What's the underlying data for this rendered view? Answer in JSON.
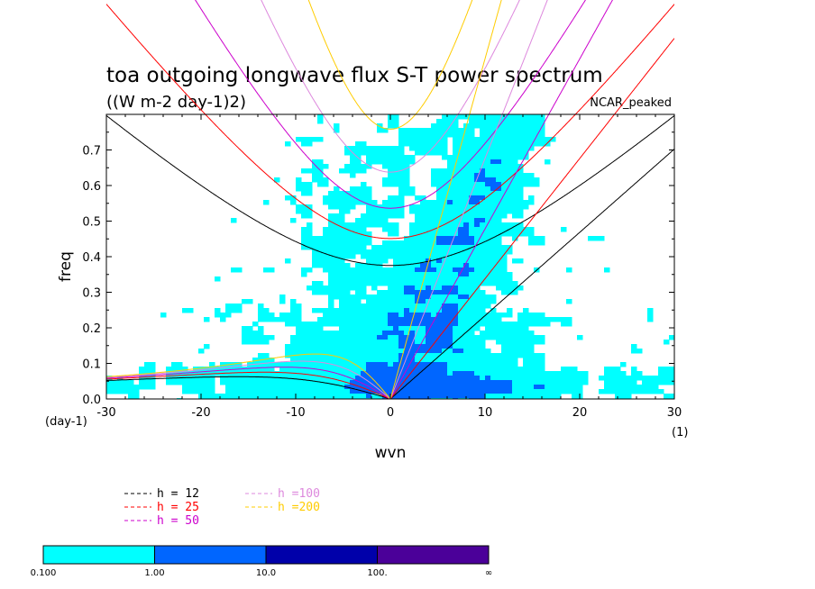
{
  "chart_data": {
    "type": "heatmap",
    "title": "toa outgoing longwave flux S-T power spectrum",
    "subtitle": "((W m-2 day-1)2)",
    "tag": "NCAR_peaked",
    "xlabel": "wvn",
    "ylabel": "freq",
    "x_unit": "(1)",
    "y_unit": "(day-1)",
    "xlim": [
      -30,
      30
    ],
    "ylim": [
      0,
      0.8
    ],
    "x_ticks": [
      -30,
      -20,
      -10,
      0,
      10,
      20,
      30
    ],
    "y_ticks": [
      0.0,
      0.1,
      0.2,
      0.3,
      0.4,
      0.5,
      0.6,
      0.7
    ],
    "x_tick_labels": [
      "-30",
      "-20",
      "-10",
      "0",
      "10",
      "20",
      "30"
    ],
    "y_tick_labels": [
      "0.0",
      "0.1",
      "0.2",
      "0.3",
      "0.4",
      "0.5",
      "0.6",
      "0.7"
    ],
    "contour_levels": [
      0.1,
      1.0,
      10.0,
      100.0
    ],
    "colorbar_labels": [
      "0.100",
      "1.00",
      "10.0",
      "100.",
      "∞"
    ],
    "colorbar_colors": [
      "#00ffff",
      "#0066ff",
      "#0000aa",
      "#4b0099"
    ],
    "dispersion_curves": [
      {
        "label": "h = 12",
        "h": 12,
        "color": "#000000"
      },
      {
        "label": "h = 25",
        "h": 25,
        "color": "#ff0000"
      },
      {
        "label": "h = 50",
        "h": 50,
        "color": "#cc00cc"
      },
      {
        "label": "h =100",
        "h": 100,
        "color": "#dd88dd"
      },
      {
        "label": "h =200",
        "h": 200,
        "color": "#ffcc00"
      }
    ]
  }
}
